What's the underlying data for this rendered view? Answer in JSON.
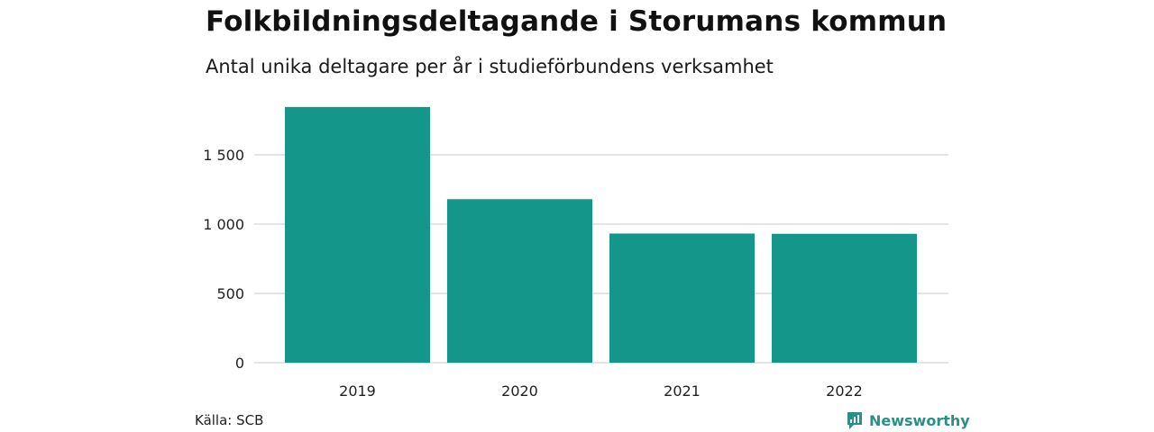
{
  "chart_data": {
    "type": "bar",
    "title": "Folkbildningsdeltagande i Storumans kommun",
    "subtitle": "Antal unika deltagare per år i studieförbundens verksamhet",
    "categories": [
      "2019",
      "2020",
      "2021",
      "2022"
    ],
    "values": [
      1845,
      1180,
      932,
      930
    ],
    "ylim": [
      0,
      1900
    ],
    "yticks": [
      0,
      500,
      1000,
      1500
    ],
    "ytick_labels": [
      "0",
      "500",
      "1 000",
      "1 500"
    ],
    "grid": true,
    "bar_color": "#14968a",
    "grid_color": "#dcdcdc"
  },
  "footer": {
    "source": "Källa: SCB",
    "brand": "Newsworthy",
    "brand_icon": "newsworthy-logo-icon",
    "brand_color": "#2a8f84"
  }
}
